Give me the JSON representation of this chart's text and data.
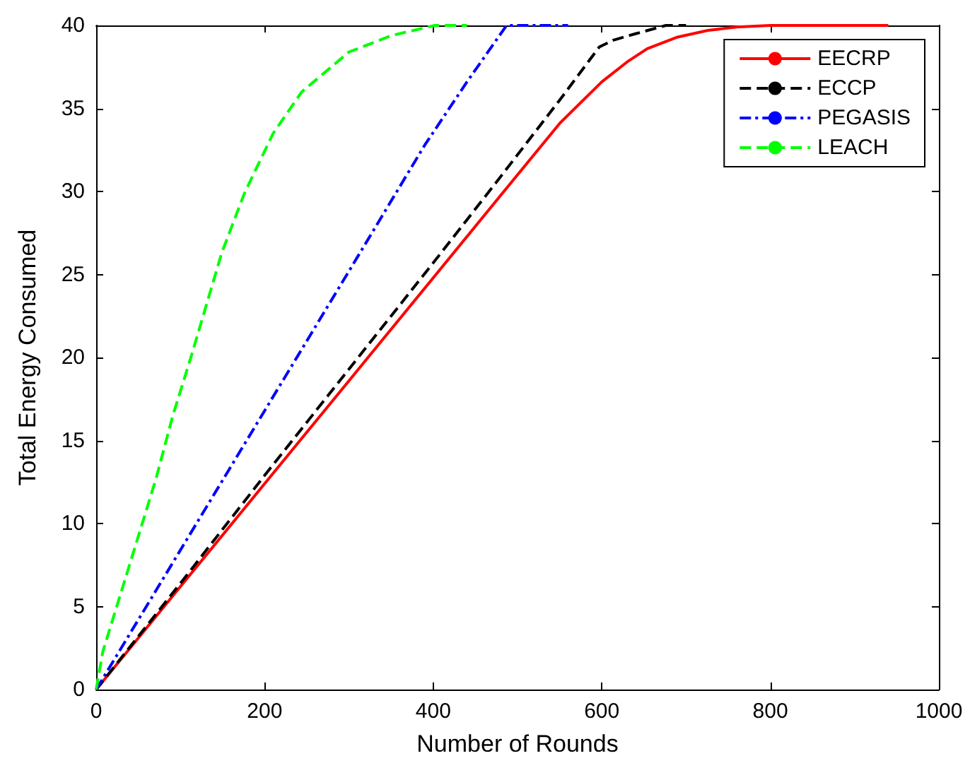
{
  "chart_data": {
    "type": "line",
    "xlabel": "Number of Rounds",
    "ylabel": "Total Energy Consumed",
    "xlim": [
      0,
      1000
    ],
    "ylim": [
      0,
      40
    ],
    "xticks": [
      0,
      200,
      400,
      600,
      800,
      1000
    ],
    "yticks": [
      0,
      5,
      10,
      15,
      20,
      25,
      30,
      35,
      40
    ],
    "grid": false,
    "legend": "top right",
    "marker": "none",
    "series": [
      {
        "name": "EECRP",
        "color": "#ff0000",
        "line_style": "solid",
        "x": [
          0,
          100,
          200,
          300,
          400,
          479,
          550,
          600,
          630,
          654,
          690,
          726,
          760,
          800,
          940
        ],
        "values": [
          0,
          6.2,
          12.4,
          18.6,
          24.8,
          29.7,
          34.1,
          36.6,
          37.8,
          38.6,
          39.3,
          39.7,
          39.9,
          40,
          40
        ]
      },
      {
        "name": "ECCP",
        "color": "#000000",
        "line_style": "dashed",
        "x": [
          0,
          100,
          200,
          300,
          400,
          474,
          550,
          597,
          613,
          640,
          676,
          700
        ],
        "values": [
          0,
          6.4,
          12.9,
          19.3,
          25.7,
          30.5,
          35.5,
          38.7,
          39.1,
          39.5,
          40,
          40
        ]
      },
      {
        "name": "PEGASIS",
        "color": "#0000ff",
        "line_style": "dashdot",
        "x": [
          0,
          100,
          200,
          300,
          390,
          440,
          487,
          520,
          560
        ],
        "values": [
          0,
          8.4,
          16.8,
          25.2,
          32.8,
          36.6,
          40,
          40,
          40
        ]
      },
      {
        "name": "LEACH",
        "color": "#00ff00",
        "line_style": "dashed",
        "x": [
          0,
          8,
          42,
          71,
          91,
          113,
          149,
          176,
          210,
          244,
          300,
          351,
          402,
          440
        ],
        "values": [
          0,
          2.3,
          7.9,
          12.7,
          16.5,
          20.1,
          26.3,
          29.9,
          33.5,
          36,
          38.4,
          39.4,
          40,
          40
        ]
      }
    ]
  }
}
